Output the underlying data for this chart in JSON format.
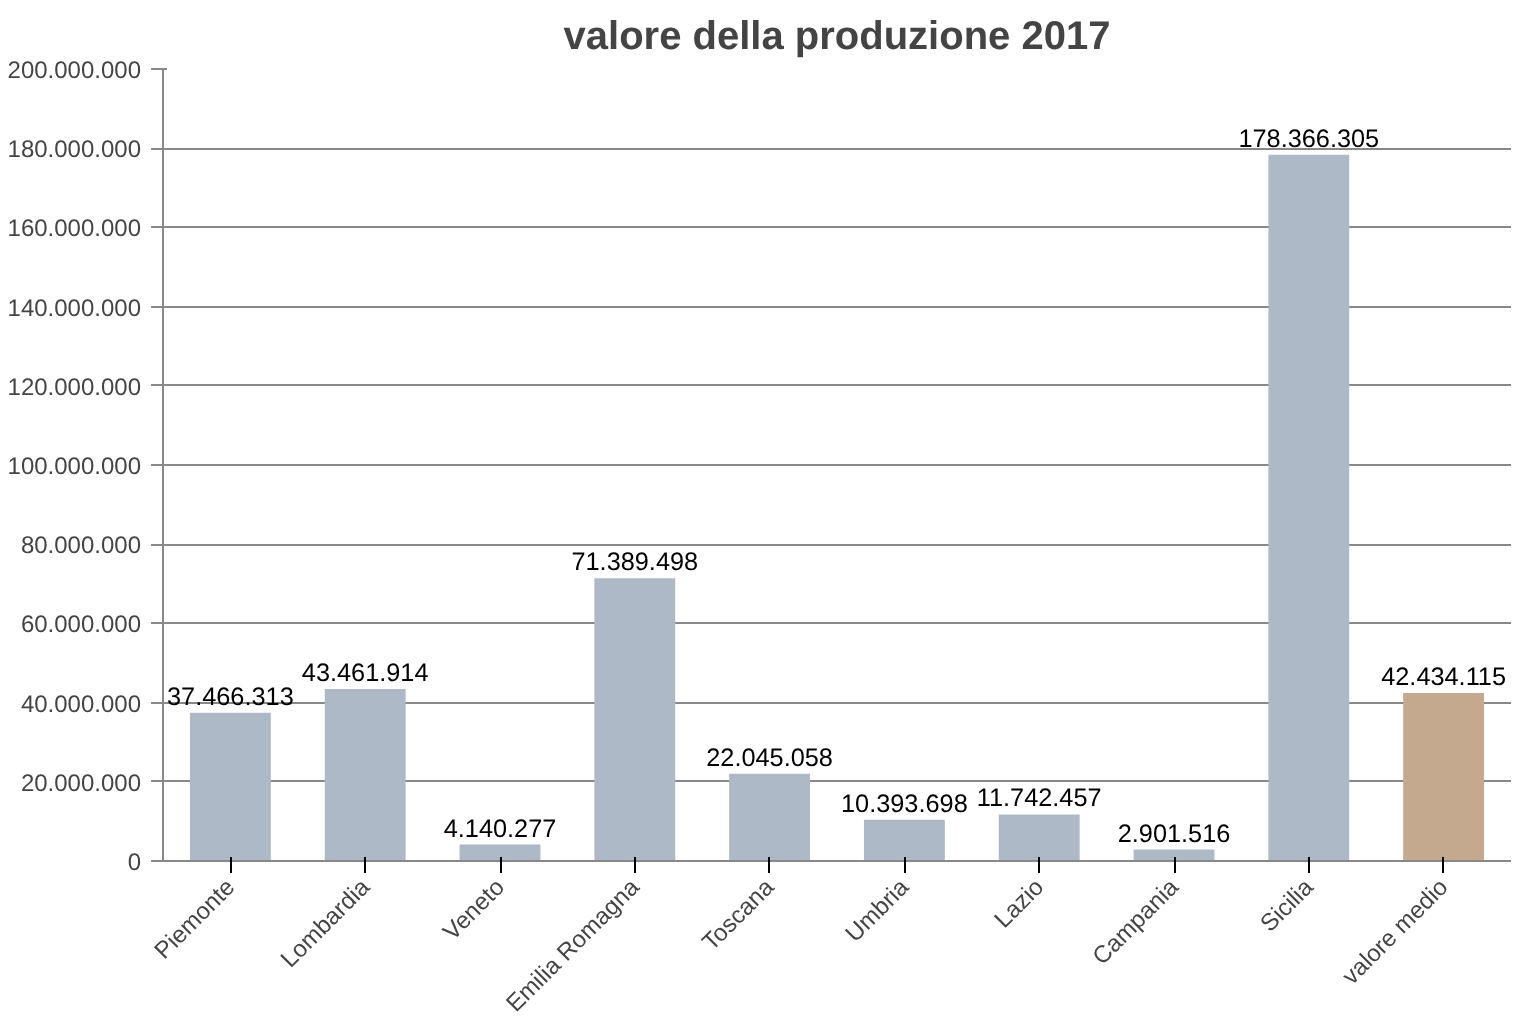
{
  "chart_data": {
    "type": "bar",
    "title": "valore della produzione 2017",
    "categories": [
      "Piemonte",
      "Lombardia",
      "Veneto",
      "Emilia Romagna",
      "Toscana",
      "Umbria",
      "Lazio",
      "Campania",
      "Sicilia",
      "valore medio"
    ],
    "values": [
      37466313,
      43461914,
      4140277,
      71389498,
      22045058,
      10393698,
      11742457,
      2901516,
      178366305,
      42434115
    ],
    "colors": [
      "#aeb9c8",
      "#aeb9c8",
      "#aeb9c8",
      "#aeb9c8",
      "#aeb9c8",
      "#aeb9c8",
      "#aeb9c8",
      "#aeb9c8",
      "#aeb9c8",
      "#c4a98f"
    ],
    "value_labels": [
      "37.466.313",
      "43.461.914",
      "4.140.277",
      "71.389.498",
      "22.045.058",
      "10.393.698",
      "11.742.457",
      "2.901.516",
      "178.366.305",
      "42.434.115"
    ],
    "ylim": [
      0,
      200000000
    ],
    "yticks": [
      {
        "value": 0,
        "label": "0"
      },
      {
        "value": 20000000,
        "label": "20.000.000"
      },
      {
        "value": 40000000,
        "label": "40.000.000"
      },
      {
        "value": 60000000,
        "label": "60.000.000"
      },
      {
        "value": 80000000,
        "label": "80.000.000"
      },
      {
        "value": 100000000,
        "label": "100.000.000"
      },
      {
        "value": 120000000,
        "label": "120.000.000"
      },
      {
        "value": 140000000,
        "label": "140.000.000"
      },
      {
        "value": 160000000,
        "label": "160.000.000"
      },
      {
        "value": 180000000,
        "label": "180.000.000"
      },
      {
        "value": 200000000,
        "label": "200.000.000"
      }
    ],
    "grid": "y"
  }
}
